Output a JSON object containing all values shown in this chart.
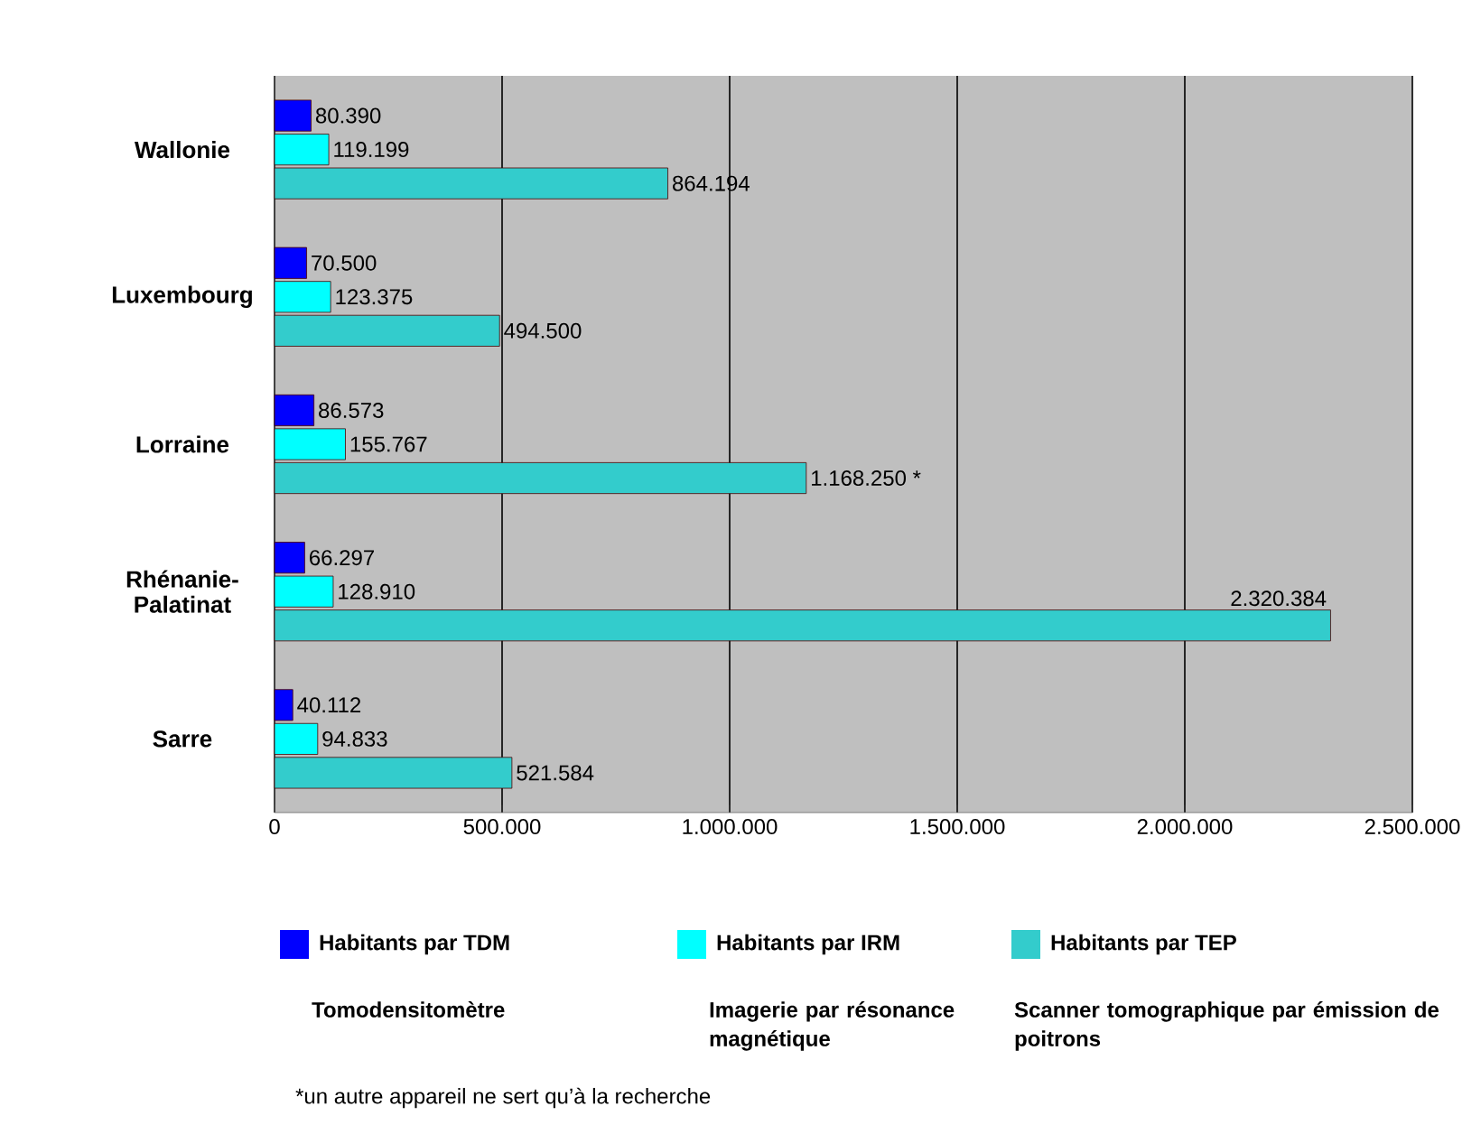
{
  "chart_data": {
    "type": "bar",
    "orientation": "horizontal",
    "categories": [
      "Wallonie",
      "Luxembourg",
      "Lorraine",
      "Rhénanie-Palatinat",
      "Sarre"
    ],
    "series": [
      {
        "name": "Habitants par TDM",
        "color": "#0000ff",
        "values": [
          80390,
          70500,
          86573,
          66297,
          40112
        ],
        "value_labels": [
          "80.390",
          "70.500",
          "86.573",
          "66.297",
          "40.112"
        ]
      },
      {
        "name": "Habitants par IRM",
        "color": "#00ffff",
        "values": [
          119199,
          123375,
          155767,
          128910,
          94833
        ],
        "value_labels": [
          "119.199",
          "123.375",
          "155.767",
          "128.910",
          "94.833"
        ]
      },
      {
        "name": "Habitants par TEP",
        "color": "#33cccc",
        "values": [
          864194,
          494500,
          1168250,
          2320384,
          521584
        ],
        "value_labels": [
          "864.194",
          "494.500",
          "1.168.250 *",
          "2.320.384",
          "521.584"
        ]
      }
    ],
    "xlim": [
      0,
      2500000
    ],
    "xticks": [
      0,
      {
        "value": 500000,
        "label": "500.000"
      },
      {
        "value": 1000000,
        "label": "1.000.000"
      },
      {
        "value": 1500000,
        "label": "1.500.000"
      },
      {
        "value": 2000000,
        "label": "2.000.000"
      },
      {
        "value": 2500000,
        "label": "2.500.000"
      }
    ],
    "grid": "x",
    "legend": "bottom",
    "annotations": [
      "Tomodensitomètre",
      "Imagerie par résonance magnétique",
      "Scanner tomographique par émission de poitrons",
      "*un autre appareil ne sert qu’à la recherche"
    ]
  }
}
